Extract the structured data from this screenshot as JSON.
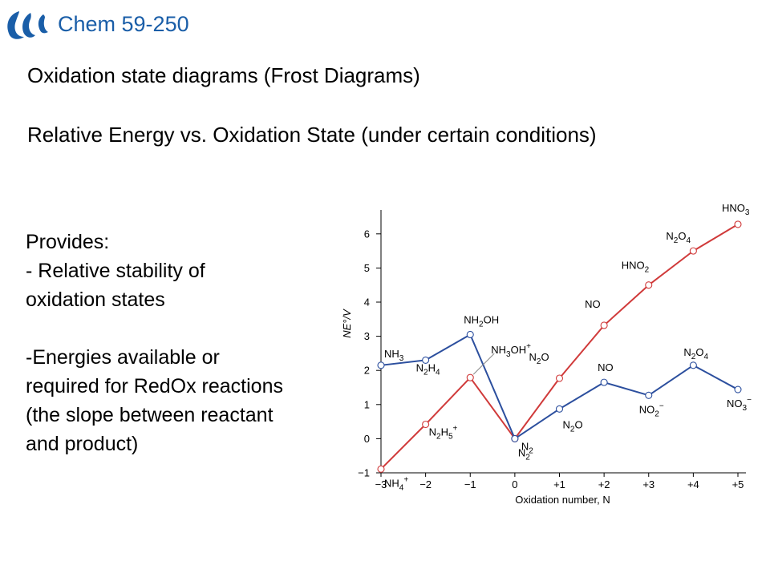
{
  "header": {
    "course": "Chem 59-250",
    "logo_icon": "university-swoosh-logo"
  },
  "slide": {
    "title": "Oxidation state diagrams (Frost Diagrams)",
    "subtitle": "Relative Energy vs. Oxidation State (under certain conditions)",
    "provides": {
      "heading": "Provides:",
      "lines": [
        "- Relative stability of",
        "oxidation states",
        "",
        "-Energies available or",
        "required for RedOx reactions",
        "(the slope between reactant",
        "and product)"
      ]
    }
  },
  "colors": {
    "course_text": "#1a5ea8",
    "red_series": "#d03a3a",
    "blue_series": "#2c4f9e",
    "marker_fill": "#ffffff"
  },
  "chart_data": {
    "type": "line",
    "xlabel": "Oxidation number, N",
    "ylabel": "NE°/V",
    "xlim": [
      -3,
      5
    ],
    "ylim": [
      -1,
      6.5
    ],
    "x_tick_labels": [
      "−3",
      "−2",
      "−1",
      "0",
      "+1",
      "+2",
      "+3",
      "+4",
      "+5"
    ],
    "y_tick_labels": [
      "−1",
      "0",
      "1",
      "2",
      "3",
      "4",
      "5",
      "6"
    ],
    "series": [
      {
        "color": "#d03a3a",
        "points": [
          {
            "x": -3,
            "y": -0.89,
            "label": "NH4+"
          },
          {
            "x": -2,
            "y": 0.42,
            "label": "N2H5+"
          },
          {
            "x": -1,
            "y": 1.79,
            "label": "NH3OH+"
          },
          {
            "x": 0,
            "y": 0,
            "label": "N2"
          },
          {
            "x": 1,
            "y": 1.77,
            "label": "N2O"
          },
          {
            "x": 2,
            "y": 3.32,
            "label": "NO"
          },
          {
            "x": 3,
            "y": 4.5,
            "label": "HNO2"
          },
          {
            "x": 4,
            "y": 5.5,
            "label": "N2O4"
          },
          {
            "x": 5,
            "y": 6.28,
            "label": "HNO3"
          }
        ]
      },
      {
        "color": "#2c4f9e",
        "points": [
          {
            "x": -3,
            "y": 2.15,
            "label": "NH3"
          },
          {
            "x": -2,
            "y": 2.3,
            "label": "N2H4"
          },
          {
            "x": -1,
            "y": 3.05,
            "label": "NH2OH"
          },
          {
            "x": 0,
            "y": 0,
            "label": "N2"
          },
          {
            "x": 1,
            "y": 0.87,
            "label": "N2O"
          },
          {
            "x": 2,
            "y": 1.65,
            "label": "NO"
          },
          {
            "x": 3,
            "y": 1.27,
            "label": "NO2−"
          },
          {
            "x": 4,
            "y": 2.15,
            "label": "N2O4"
          },
          {
            "x": 5,
            "y": 1.44,
            "label": "NO3−"
          }
        ]
      }
    ]
  }
}
